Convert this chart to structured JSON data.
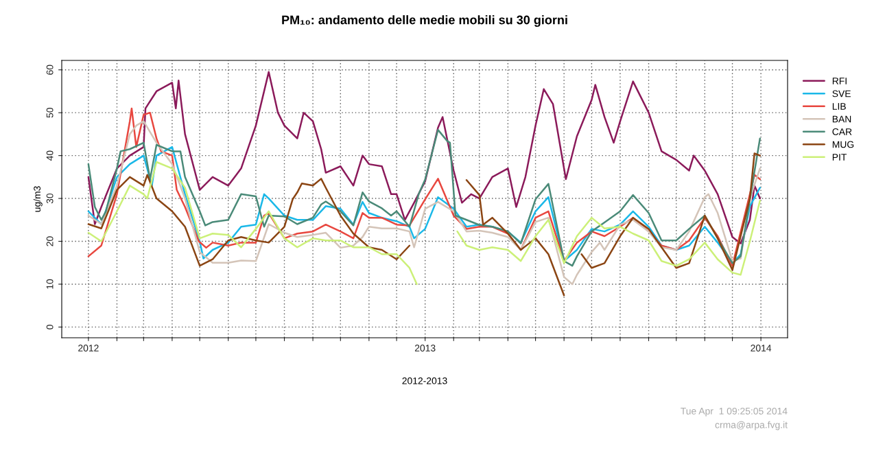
{
  "chart_data": {
    "type": "line",
    "title": "PM₁₀: andamento delle medie mobili su 30 giorni",
    "xlabel": "2012-2013",
    "ylabel": "ug/m3",
    "xlim": [
      "2011-12-03",
      "2014-01-30"
    ],
    "ylim": [
      -2.5,
      62.2
    ],
    "xticks": [
      {
        "value": "2012-01-01",
        "label": "2012"
      },
      {
        "value": "2012-02-01",
        "label": null
      },
      {
        "value": "2012-03-01",
        "label": null
      },
      {
        "value": "2012-04-01",
        "label": null
      },
      {
        "value": "2012-05-01",
        "label": null
      },
      {
        "value": "2012-06-01",
        "label": null
      },
      {
        "value": "2012-07-01",
        "label": null
      },
      {
        "value": "2012-08-01",
        "label": null
      },
      {
        "value": "2012-09-01",
        "label": null
      },
      {
        "value": "2012-10-01",
        "label": null
      },
      {
        "value": "2012-11-01",
        "label": null
      },
      {
        "value": "2012-12-01",
        "label": null
      },
      {
        "value": "2013-01-01",
        "label": "2013"
      },
      {
        "value": "2013-02-01",
        "label": null
      },
      {
        "value": "2013-03-01",
        "label": null
      },
      {
        "value": "2013-04-01",
        "label": null
      },
      {
        "value": "2013-05-01",
        "label": null
      },
      {
        "value": "2013-06-01",
        "label": null
      },
      {
        "value": "2013-07-01",
        "label": null
      },
      {
        "value": "2013-08-01",
        "label": null
      },
      {
        "value": "2013-09-01",
        "label": null
      },
      {
        "value": "2013-10-01",
        "label": null
      },
      {
        "value": "2013-11-01",
        "label": null
      },
      {
        "value": "2013-12-01",
        "label": null
      },
      {
        "value": "2014-01-01",
        "label": "2014"
      }
    ],
    "yticks": [
      0,
      10,
      20,
      30,
      40,
      50,
      60
    ],
    "grid": true,
    "legend": "right",
    "line_style": "solid",
    "annotations": [
      "Tue Apr  1 09:25:05 2014",
      "crma@arpa.fvg.it"
    ],
    "series": [
      {
        "name": "RFI",
        "color": "#8b1a5a",
        "x": [
          "2012-01-01",
          "2012-01-08",
          "2012-01-15",
          "2012-02-01",
          "2012-02-15",
          "2012-03-01",
          "2012-03-03",
          "2012-03-15",
          "2012-04-01",
          "2012-04-05",
          "2012-04-08",
          "2012-04-15",
          "2012-05-01",
          "2012-05-15",
          "2012-06-01",
          "2012-06-15",
          "2012-07-01",
          "2012-07-15",
          "2012-07-25",
          "2012-08-01",
          "2012-08-15",
          "2012-08-22",
          "2012-09-01",
          "2012-09-10",
          "2012-09-15",
          "2012-10-01",
          "2012-10-15",
          "2012-10-25",
          "2012-11-01",
          "2012-11-15",
          "2012-11-25",
          "2012-12-01",
          "2012-12-10",
          "2012-12-20",
          "2013-01-01",
          "2013-01-15",
          "2013-01-20",
          "2013-02-01",
          "2013-02-10",
          "2013-02-20",
          "2013-03-01",
          "2013-03-15",
          "2013-04-01",
          "2013-04-10",
          "2013-04-20",
          "2013-05-01",
          "2013-05-10",
          "2013-05-20",
          "2013-06-03",
          "2013-06-15",
          "2013-07-01",
          "2013-07-05",
          "2013-07-15",
          "2013-07-25",
          "2013-08-01",
          "2013-08-15",
          "2013-09-01",
          "2013-09-15",
          "2013-10-01",
          "2013-10-15",
          "2013-10-20",
          "2013-11-01",
          "2013-11-15",
          "2013-12-01",
          "2013-12-10",
          "2013-12-20",
          "2013-12-25",
          "2013-12-31"
        ],
        "values": [
          35,
          24,
          28,
          37,
          40,
          42,
          51,
          55,
          57,
          51,
          57.5,
          45,
          32,
          35,
          33,
          37,
          47,
          59.5,
          50,
          47,
          44,
          50,
          48,
          41.5,
          36,
          37.5,
          33,
          40,
          38,
          37.5,
          31,
          31,
          25,
          29,
          34,
          46.5,
          49,
          36.5,
          29,
          31,
          30,
          35,
          37,
          28,
          35,
          47,
          55.5,
          52,
          34.5,
          44.5,
          53,
          56.5,
          49,
          43,
          48,
          57.3,
          50,
          41,
          39,
          36.5,
          40,
          36.5,
          31,
          21,
          19.5,
          25,
          33,
          30
        ]
      },
      {
        "name": "SVE",
        "color": "#1ab8e8",
        "x": [
          "2012-01-01",
          "2012-01-15",
          "2012-02-01",
          "2012-02-15",
          "2012-03-01",
          "2012-03-10",
          "2012-03-15",
          "2012-04-01",
          "2012-04-15",
          "2012-05-01",
          "2012-05-05",
          "2012-05-15",
          "2012-06-01",
          "2012-06-15",
          "2012-07-01",
          "2012-07-10",
          "2012-07-15",
          "2012-08-01",
          "2012-08-15",
          "2012-09-01",
          "2012-09-15",
          "2012-10-01",
          "2012-10-15",
          "2012-10-25",
          "2012-11-01",
          "2012-11-15",
          "2012-12-01",
          "2012-12-15",
          "2012-12-20",
          "2013-01-01",
          "2013-01-15",
          "2013-02-01",
          "2013-02-15",
          "2013-03-01",
          "2013-03-15",
          "2013-04-01",
          "2013-04-15",
          "2013-05-01",
          "2013-05-15",
          "2013-06-01",
          "2013-06-15",
          "2013-07-01",
          "2013-07-15",
          "2013-08-01",
          "2013-08-15",
          "2013-09-01",
          "2013-09-15",
          "2013-10-01",
          "2013-10-15",
          "2013-11-01",
          "2013-11-15",
          "2013-12-01",
          "2013-12-10",
          "2013-12-20",
          "2013-12-31"
        ],
        "values": [
          27,
          24,
          35,
          38,
          40,
          33,
          40,
          42,
          31,
          20,
          16,
          18,
          19.7,
          23.4,
          23.9,
          31,
          30,
          26,
          25,
          25,
          28.2,
          27.6,
          23.9,
          29.2,
          26.6,
          25.5,
          24.7,
          23.4,
          20.7,
          22.9,
          30.3,
          27.6,
          23.4,
          23.9,
          23.4,
          22.3,
          19.7,
          27,
          30.3,
          15.4,
          18,
          22.9,
          22.3,
          23.9,
          27,
          23.4,
          19,
          18,
          19,
          23.4,
          19.7,
          14.9,
          17,
          28.2,
          32.5
        ]
      },
      {
        "name": "LIB",
        "color": "#e8473f",
        "x": [
          "2012-01-01",
          "2012-01-15",
          "2012-02-01",
          "2012-02-15",
          "2012-02-17",
          "2012-02-22",
          "2012-03-01",
          "2012-03-08",
          "2012-03-15",
          "2012-03-20",
          "2012-04-01",
          "2012-04-06",
          "2012-04-15",
          "2012-04-30",
          "2012-05-08",
          "2012-05-15",
          "2012-06-01",
          "2012-06-15",
          "2012-07-01",
          "2012-07-10",
          "2012-07-15",
          "2012-08-01",
          "2012-08-15",
          "2012-09-01",
          "2012-09-15",
          "2012-10-01",
          "2012-10-15",
          "2012-10-25",
          "2012-11-01",
          "2012-11-15",
          "2012-12-01",
          "2012-12-15",
          "2013-01-01",
          "2013-01-15",
          "2013-02-01",
          "2013-02-15",
          "2013-03-01",
          "2013-03-15",
          "2013-04-01",
          "2013-04-15",
          "2013-05-01",
          "2013-05-15",
          "2013-06-01",
          "2013-06-15",
          "2013-07-01",
          "2013-07-15",
          "2013-08-01",
          "2013-08-15",
          "2013-09-01",
          "2013-09-15",
          "2013-10-01",
          "2013-10-15",
          "2013-11-01",
          "2013-11-15",
          "2013-12-01",
          "2013-12-20",
          "2013-12-25",
          "2013-12-31"
        ],
        "values": [
          16.5,
          19,
          31,
          48,
          51,
          42,
          49.5,
          50,
          44,
          41,
          40,
          32,
          28,
          20,
          18.5,
          19.7,
          19,
          19.7,
          19.7,
          26,
          26.6,
          20.7,
          21.8,
          22.3,
          23.9,
          22.3,
          20.7,
          26.6,
          25.5,
          25.5,
          23.9,
          23.7,
          29.8,
          34.6,
          26,
          22.9,
          23.4,
          23.4,
          21.8,
          18,
          25.5,
          27,
          15.4,
          19.7,
          22.3,
          21.2,
          23.4,
          25.5,
          22.3,
          19,
          18,
          20.2,
          25.5,
          21.2,
          14.3,
          31,
          35.5,
          34.5
        ]
      },
      {
        "name": "BAN",
        "color": "#d4c4b8",
        "x": [
          "2012-01-01",
          "2012-01-15",
          "2012-02-01",
          "2012-02-15",
          "2012-02-22",
          "2012-03-01",
          "2012-03-15",
          "2012-04-01",
          "2012-04-15",
          "2012-05-01",
          "2012-05-15",
          "2012-06-01",
          "2012-06-15",
          "2012-07-01",
          "2012-07-15",
          "2012-08-01",
          "2012-08-15",
          "2012-09-01",
          "2012-09-15",
          "2012-10-01",
          "2012-10-15",
          "2012-10-25",
          "2012-11-01",
          "2012-11-15",
          "2012-12-01",
          "2012-12-15",
          "2012-12-20",
          "2013-01-01",
          "2013-01-15",
          "2013-02-01",
          "2013-02-15",
          "2013-03-01",
          "2013-03-15",
          "2013-04-01",
          "2013-04-15",
          "2013-05-01",
          "2013-05-15",
          "2013-06-01",
          "2013-06-10",
          "2013-06-15",
          "2013-07-01",
          "2013-07-10",
          "2013-07-15",
          "2013-08-01",
          "2013-08-15",
          "2013-09-01",
          "2013-09-15",
          "2013-10-01",
          "2013-10-15",
          "2013-11-01",
          "2013-11-05",
          "2013-11-15",
          "2013-12-01",
          "2013-12-10",
          "2013-12-20",
          "2013-12-31"
        ],
        "values": [
          26,
          24,
          33,
          45,
          47,
          48,
          43,
          38,
          30,
          17.5,
          15,
          15,
          15.5,
          15.4,
          24,
          22,
          21,
          21.5,
          22,
          18.5,
          19,
          21,
          23.4,
          23,
          23,
          22.3,
          18.6,
          27.6,
          29.2,
          27,
          22.3,
          22.5,
          22,
          21,
          18,
          24.5,
          25.5,
          11.7,
          10,
          12.2,
          17.5,
          19.7,
          18,
          23.9,
          25,
          22.3,
          18.6,
          18,
          22.3,
          30.3,
          31,
          26.6,
          15.4,
          16,
          30,
          37
        ]
      },
      {
        "name": "CAR",
        "color": "#4a8a78",
        "x": [
          "2012-01-01",
          "2012-01-08",
          "2012-01-15",
          "2012-01-20",
          "2012-02-01",
          "2012-02-05",
          "2012-02-15",
          "2012-03-01",
          "2012-03-08",
          "2012-03-15",
          "2012-04-01",
          "2012-04-10",
          "2012-04-15",
          "2012-05-01",
          "2012-05-07",
          "2012-05-15",
          "2012-06-01",
          "2012-06-15",
          "2012-07-01",
          "2012-07-10",
          "2012-07-15",
          "2012-08-01",
          "2012-08-15",
          "2012-09-01",
          "2012-09-10",
          "2012-09-15",
          "2012-10-01",
          "2012-10-15",
          "2012-10-25",
          "2012-11-01",
          "2012-11-15",
          "2012-11-25",
          "2012-12-01",
          "2012-12-15",
          "2012-12-25",
          "2013-01-01",
          "2013-01-15",
          "2013-01-25",
          "2013-01-28",
          "2013-02-03",
          "2013-02-15",
          "2013-03-01",
          "2013-03-15",
          "2013-04-01",
          "2013-04-15",
          "2013-05-01",
          "2013-05-15",
          "2013-06-01",
          "2013-06-10",
          "2013-06-15",
          "2013-07-01",
          "2013-07-15",
          "2013-08-01",
          "2013-08-15",
          "2013-09-01",
          "2013-09-15",
          "2013-10-01",
          "2013-10-15",
          "2013-11-01",
          "2013-11-15",
          "2013-12-01",
          "2013-12-10",
          "2013-12-20",
          "2013-12-31"
        ],
        "values": [
          38,
          28,
          25,
          27,
          37,
          41,
          41.5,
          43,
          34.5,
          42.5,
          41,
          41,
          35,
          27,
          23.7,
          24.5,
          25,
          31,
          30.5,
          23.4,
          26,
          25.8,
          24,
          25.5,
          28.6,
          29.3,
          27,
          23.7,
          31.4,
          29.3,
          27.7,
          26,
          27,
          23.4,
          31,
          34.4,
          46,
          43.4,
          43,
          26,
          25,
          23.8,
          23.4,
          22.3,
          19.5,
          29.8,
          33.4,
          15.4,
          14.3,
          16.5,
          22.3,
          24.4,
          27,
          30.8,
          26.6,
          20.2,
          20.2,
          22.9,
          26,
          20.7,
          14.9,
          16.5,
          29.8,
          44
        ]
      },
      {
        "name": "MUG",
        "color": "#8b4513",
        "x": [
          "2012-01-01",
          "2012-01-15",
          "2012-02-01",
          "2012-02-15",
          "2012-03-01",
          "2012-03-05",
          "2012-03-15",
          "2012-04-01",
          "2012-04-15",
          "2012-05-01",
          "2012-05-15",
          "2012-06-01",
          "2012-06-15",
          "2012-07-01",
          "2012-07-15",
          "2012-08-01",
          "2012-08-10",
          "2012-08-15",
          "2012-08-20",
          "2012-09-01",
          "2012-09-10",
          "2012-09-15",
          "2012-10-01",
          "2012-10-15",
          "2012-11-01",
          "2012-11-15",
          "2012-12-01",
          "2012-12-15",
          "2013-01-20",
          "2013-02-15",
          "2013-03-01",
          "2013-03-05",
          "2013-03-15",
          "2013-04-01",
          "2013-04-15",
          "2013-05-01",
          "2013-05-15",
          "2013-06-01",
          "2013-06-10",
          "2013-06-20",
          "2013-07-01",
          "2013-07-15",
          "2013-08-01",
          "2013-08-15",
          "2013-09-01",
          "2013-09-15",
          "2013-10-01",
          "2013-10-15",
          "2013-11-01",
          "2013-11-15",
          "2013-12-01",
          "2013-12-20",
          "2013-12-25",
          "2013-12-31"
        ],
        "values": [
          24,
          23,
          32,
          35,
          33,
          35.5,
          30,
          27,
          23.4,
          14.3,
          15.8,
          20.2,
          21,
          20.2,
          19.7,
          23.4,
          29.8,
          31.4,
          33.5,
          33,
          34.6,
          32.5,
          26,
          21.8,
          18.6,
          18,
          15.8,
          19,
          null,
          34.3,
          30.8,
          23.9,
          25.5,
          21.8,
          18,
          20.7,
          17,
          7.4,
          null,
          17,
          13.8,
          14.9,
          21.2,
          25.5,
          22.9,
          18.6,
          13.8,
          14.9,
          26,
          20.7,
          13.3,
          30,
          40.5,
          40
        ]
      },
      {
        "name": "PIT",
        "color": "#ccf078",
        "x": [
          "2012-01-01",
          "2012-01-15",
          "2012-02-01",
          "2012-02-15",
          "2012-03-01",
          "2012-03-05",
          "2012-03-15",
          "2012-04-01",
          "2012-04-15",
          "2012-05-01",
          "2012-05-15",
          "2012-06-01",
          "2012-06-15",
          "2012-07-01",
          "2012-07-15",
          "2012-08-01",
          "2012-08-15",
          "2012-09-01",
          "2012-09-15",
          "2012-10-01",
          "2012-10-15",
          "2012-11-01",
          "2012-11-15",
          "2012-12-01",
          "2012-12-15",
          "2012-12-23",
          "2013-01-20",
          "2013-02-05",
          "2013-02-15",
          "2013-03-01",
          "2013-03-15",
          "2013-04-01",
          "2013-04-15",
          "2013-05-01",
          "2013-05-15",
          "2013-06-01",
          "2013-06-15",
          "2013-07-01",
          "2013-07-15",
          "2013-08-01",
          "2013-08-15",
          "2013-09-01",
          "2013-09-15",
          "2013-10-01",
          "2013-10-15",
          "2013-11-01",
          "2013-11-15",
          "2013-12-01",
          "2013-12-10",
          "2013-12-20",
          "2013-12-31"
        ],
        "values": [
          22,
          20,
          27,
          33,
          31,
          30,
          38.5,
          37,
          32.5,
          20.7,
          21.8,
          21.5,
          18.6,
          22.9,
          27,
          20.7,
          18.6,
          20.7,
          20.2,
          20.2,
          18.6,
          18.6,
          17,
          17,
          13.8,
          10,
          null,
          22.3,
          19,
          18,
          18.6,
          18,
          15.4,
          21.2,
          25,
          14.9,
          21.2,
          25.5,
          23,
          23.4,
          21.8,
          20.2,
          15.4,
          14.3,
          15.8,
          19.7,
          15.8,
          12.7,
          12.2,
          20,
          29.5
        ]
      }
    ]
  }
}
